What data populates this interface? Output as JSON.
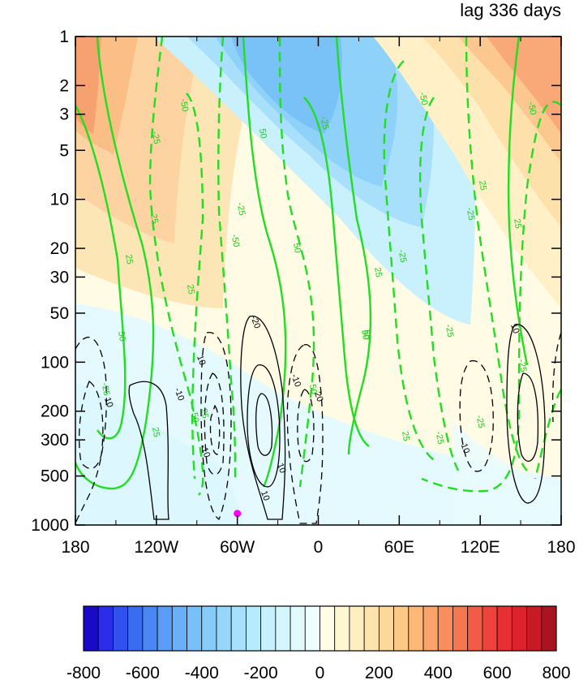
{
  "chart_data": {
    "type": "heatmap",
    "title": "lag 336 days",
    "x_axis": {
      "type": "longitude",
      "range": [
        -180,
        180
      ],
      "ticks": [
        -180,
        -120,
        -60,
        0,
        60,
        120,
        180
      ],
      "tick_labels": [
        "180",
        "120W",
        "60W",
        "0",
        "60E",
        "120E",
        "180"
      ]
    },
    "y_axis": {
      "type": "pressure",
      "scale": "log",
      "inverted": true,
      "range": [
        1,
        1000
      ],
      "ticks": [
        1,
        2,
        3,
        5,
        10,
        20,
        30,
        50,
        100,
        200,
        300,
        500,
        1000
      ],
      "tick_labels": [
        "1",
        "2",
        "3",
        "5",
        "10",
        "20",
        "30",
        "50",
        "100",
        "200",
        "300",
        "500",
        "1000"
      ]
    },
    "colorbar": {
      "levels": [
        -800,
        -750,
        -700,
        -650,
        -600,
        -550,
        -500,
        -450,
        -400,
        -350,
        -300,
        -250,
        -200,
        -150,
        -100,
        -50,
        0,
        50,
        100,
        150,
        200,
        250,
        300,
        350,
        400,
        450,
        500,
        550,
        600,
        650,
        700,
        750,
        800
      ],
      "tick_labels": [
        "-800",
        "-600",
        "-400",
        "-200",
        "0",
        "200",
        "400",
        "600",
        "800"
      ],
      "colors": [
        "#1a0ac8",
        "#2a2ee8",
        "#3050f0",
        "#3a6cf2",
        "#4a86f4",
        "#5a9cf6",
        "#6ab0f8",
        "#78c0f9",
        "#86ccfa",
        "#96d6fb",
        "#a6e0fc",
        "#b6eafd",
        "#c6f0fd",
        "#d4f6fe",
        "#e2fafe",
        "#eefdfe",
        "#fffde6",
        "#fff6d2",
        "#ffeec0",
        "#fee4ac",
        "#fdd898",
        "#fdca86",
        "#fcb878",
        "#fba46a",
        "#f98e5c",
        "#f67650",
        "#f25c46",
        "#ee423c",
        "#e83034",
        "#dc222c",
        "#c81a26",
        "#a81420"
      ]
    },
    "shading": [
      {
        "lon": -140,
        "p": 3,
        "value": 350
      },
      {
        "lon": 160,
        "p": 2,
        "value": 350
      },
      {
        "lon": -30,
        "p": 5,
        "value": -300
      },
      {
        "lon": -40,
        "p": 2,
        "value": -250
      },
      {
        "lon": 20,
        "p": 20,
        "value": -100
      },
      {
        "lon": -120,
        "p": 20,
        "value": 150
      },
      {
        "lon": -160,
        "p": 300,
        "value": -50
      },
      {
        "lon": 60,
        "p": 800,
        "value": 40
      },
      {
        "lon": 150,
        "p": 100,
        "value": 50
      }
    ],
    "green_contour_labels": [
      "50",
      "25",
      "-25",
      "-50",
      "25",
      "25",
      "-25",
      "-50",
      "50",
      "25",
      "-25",
      "50",
      "25",
      "-25",
      "-25",
      "50",
      "25",
      "-50",
      "50",
      "-25",
      "25",
      "-25",
      "25",
      "-25",
      "-50",
      "25",
      "-50",
      "-25",
      "50",
      "-25"
    ],
    "black_contour_labels": [
      "10",
      "-10",
      "10",
      "-10",
      "-20",
      "10",
      "-10",
      "10",
      "20",
      "-10",
      "10"
    ],
    "marker": {
      "lon": -60,
      "p": 850,
      "color": "#ff00ff"
    }
  }
}
